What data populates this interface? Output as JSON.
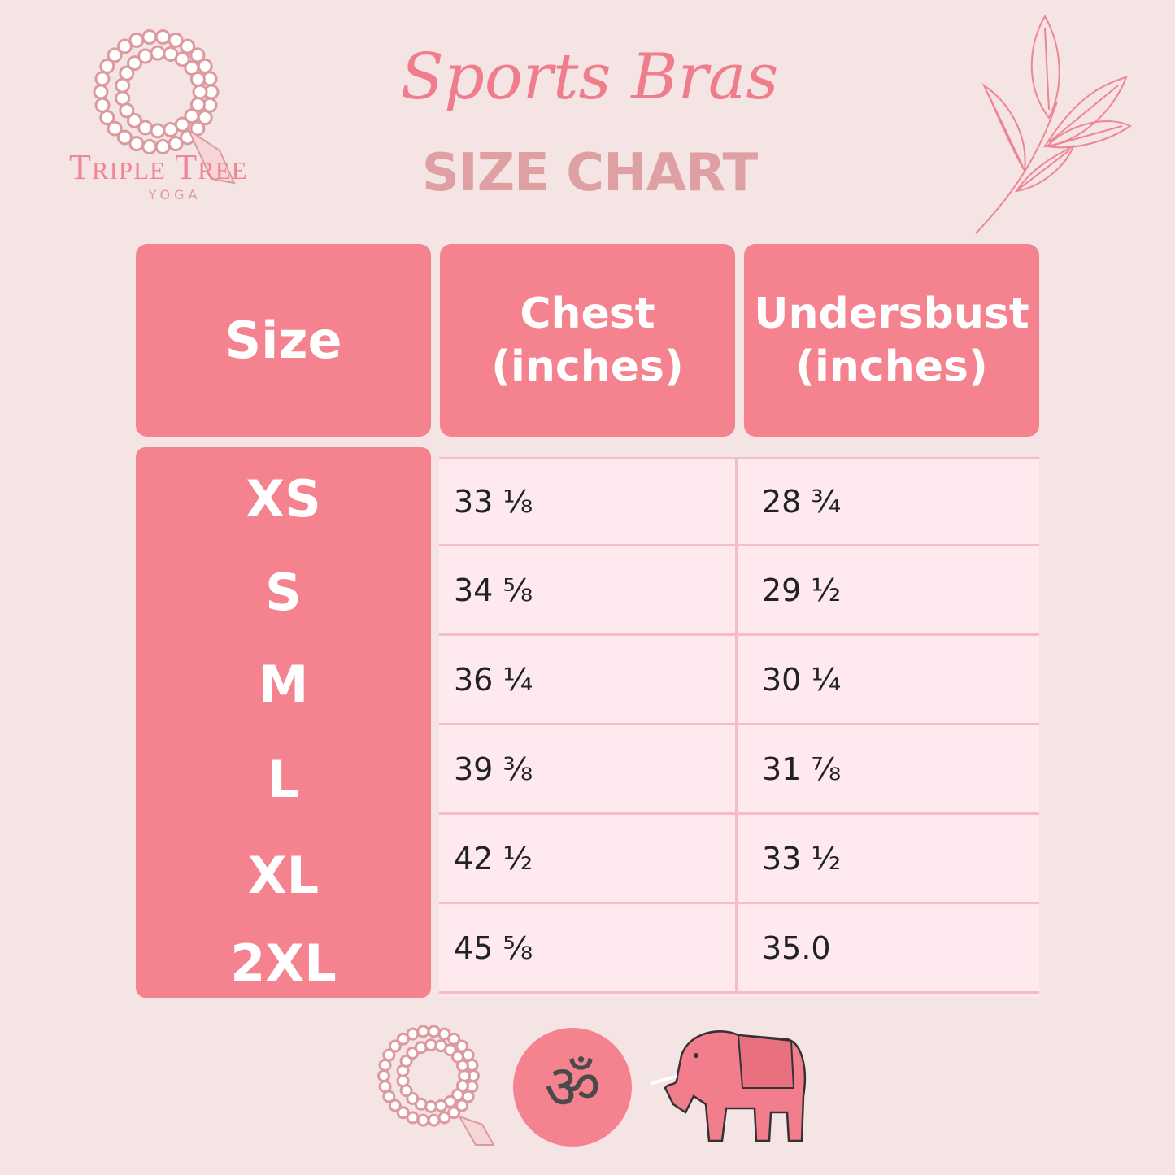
{
  "logo": {
    "name": "Triple Tree",
    "sub": "YOGA"
  },
  "title": {
    "script": "Sports Bras",
    "main": "SIZE CHART"
  },
  "table": {
    "headers": [
      {
        "line1": "Size",
        "line2": ""
      },
      {
        "line1": "Chest",
        "line2": "(inches)"
      },
      {
        "line1": "Undersbust",
        "line2": "(inches)"
      }
    ],
    "rows": [
      {
        "size": "XS",
        "chest": "33 ⅛",
        "underbust": "28 ¾"
      },
      {
        "size": "S",
        "chest": "34 ⅝",
        "underbust": "29 ½"
      },
      {
        "size": "M",
        "chest": "36 ¼",
        "underbust": "30 ¼"
      },
      {
        "size": "L",
        "chest": "39 ⅜",
        "underbust": "31 ⅞"
      },
      {
        "size": "XL",
        "chest": "42 ½",
        "underbust": "33 ½"
      },
      {
        "size": "2XL",
        "chest": "45 ⅝",
        "underbust": "35.0"
      }
    ]
  },
  "colors": {
    "background": "#f5e4e4",
    "header": "#f4828f",
    "cell": "#fde9ee",
    "border": "#f3bcc6",
    "title_script": "#ef7d8b",
    "title_main": "#dfa0a4"
  },
  "icons": [
    "mala-beads-icon",
    "leaf-branch-icon",
    "om-icon",
    "elephant-icon"
  ]
}
